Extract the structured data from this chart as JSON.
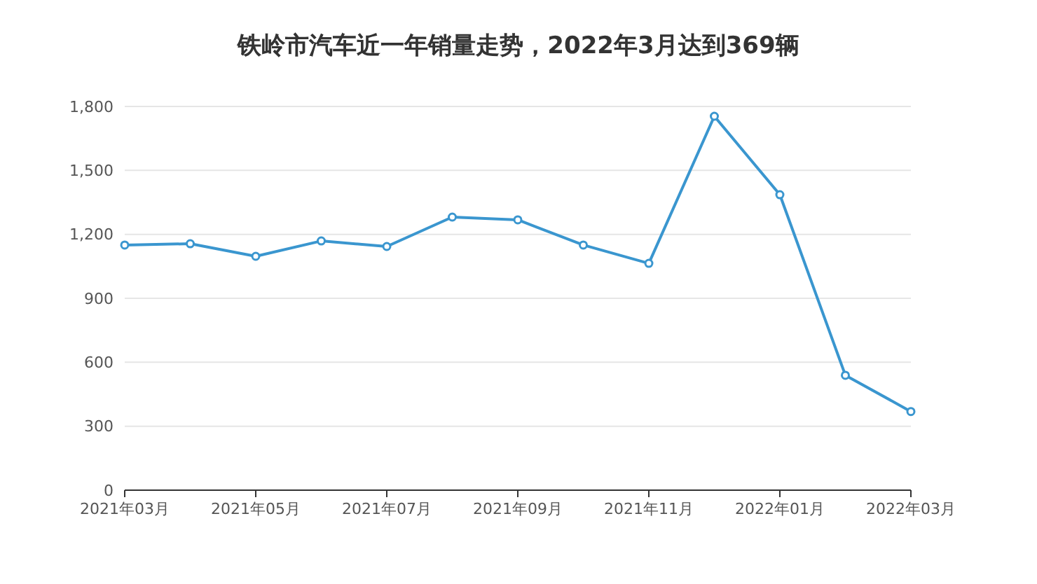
{
  "chart_data": {
    "type": "line",
    "title": "铁岭市汽车近一年销量走势，2022年3月达到369辆",
    "categories": [
      "2021年03月",
      null,
      "2021年05月",
      null,
      "2021年07月",
      null,
      "2021年09月",
      null,
      "2021年11月",
      null,
      "2022年01月",
      null,
      "2022年03月"
    ],
    "series": [
      {
        "color": "#3a96cf",
        "values": [
          1150,
          1156,
          1097,
          1169,
          1143,
          1281,
          1268,
          1150,
          1064,
          1754,
          1386,
          539,
          369
        ]
      }
    ],
    "ylim": [
      0,
      1800
    ],
    "yticks": [
      {
        "value": 0,
        "label": "0"
      },
      {
        "value": 300,
        "label": "300"
      },
      {
        "value": 600,
        "label": "600"
      },
      {
        "value": 900,
        "label": "900"
      },
      {
        "value": 1200,
        "label": "1,200"
      },
      {
        "value": 1500,
        "label": "1,500"
      },
      {
        "value": 1800,
        "label": "1,800"
      }
    ],
    "grid": "y",
    "marker": "circle",
    "line_style": "solid"
  }
}
